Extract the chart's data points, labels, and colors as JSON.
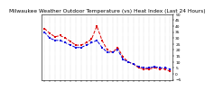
{
  "title": "Milwaukee Weather Outdoor Temperature (vs) Heat Index (Last 24 Hours)",
  "temp_color": "#0000dd",
  "heat_color": "#dd0000",
  "background_color": "#ffffff",
  "grid_color": "#aaaaaa",
  "ylim": [
    -5,
    50
  ],
  "yticks": [
    -5,
    0,
    5,
    10,
    15,
    20,
    25,
    30,
    35,
    40,
    45,
    50
  ],
  "num_points": 25,
  "temp_values": [
    35,
    30,
    28,
    28,
    26,
    24,
    22,
    22,
    24,
    26,
    28,
    22,
    18,
    18,
    20,
    12,
    10,
    8,
    6,
    5,
    5,
    6,
    5,
    5,
    4
  ],
  "heat_values": [
    38,
    34,
    31,
    32,
    30,
    27,
    24,
    24,
    26,
    29,
    40,
    28,
    20,
    18,
    22,
    14,
    10,
    8,
    5,
    4,
    4,
    5,
    4,
    4,
    2
  ],
  "title_fontsize": 4.2,
  "tick_fontsize": 3.2,
  "linewidth": 0.7,
  "markersize": 1.5
}
